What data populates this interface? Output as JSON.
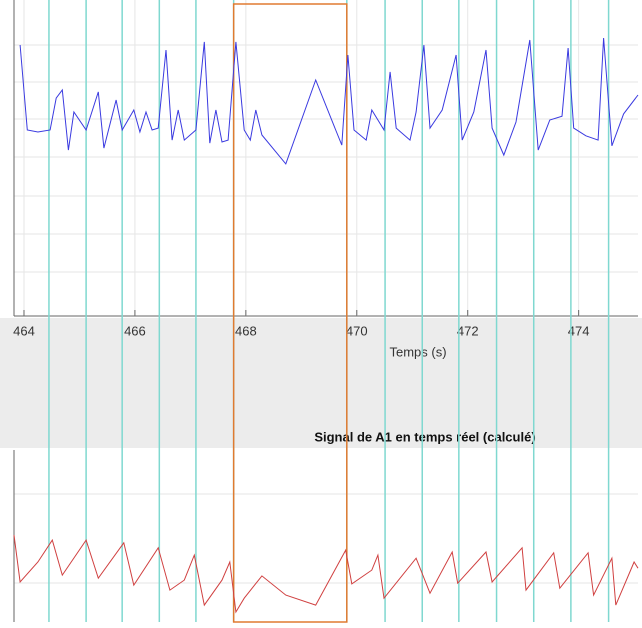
{
  "chart_data": [
    {
      "type": "line",
      "xlabel": "Temps (s)",
      "xlim": [
        463.82,
        475.07
      ],
      "ylim": [
        0,
        8
      ],
      "xticks": [
        464,
        466,
        468,
        470,
        472,
        474
      ],
      "grid": true,
      "markers": [
        464.45,
        465.12,
        465.77,
        466.44,
        467.1,
        467.78,
        469.82,
        470.51,
        471.18,
        471.84,
        472.52,
        473.19,
        473.86,
        474.54
      ],
      "marker_color": "#7fd8d0",
      "highlight": [
        467.78,
        469.82
      ],
      "highlight_color": "#e07a30",
      "x": [
        463.93,
        464.06,
        464.25,
        464.47,
        464.58,
        464.69,
        464.8,
        464.9,
        465.12,
        465.34,
        465.44,
        465.66,
        465.77,
        465.98,
        466.09,
        466.2,
        466.31,
        466.42,
        466.56,
        466.67,
        466.78,
        466.89,
        467.1,
        467.25,
        467.35,
        467.46,
        467.57,
        467.68,
        467.82,
        467.97,
        468.08,
        468.18,
        468.29,
        468.72,
        469.26,
        469.62,
        469.73,
        469.84,
        469.95,
        470.17,
        470.27,
        470.49,
        470.6,
        470.71,
        470.96,
        471.07,
        471.21,
        471.32,
        471.54,
        471.79,
        471.9,
        472.11,
        472.33,
        472.44,
        472.65,
        472.87,
        473.12,
        473.27,
        473.48,
        473.7,
        473.81,
        473.91,
        474.13,
        474.35,
        474.45,
        474.6,
        474.81,
        475.07
      ],
      "series": [
        {
          "color": "#3a3ae0",
          "values": [
            7.04,
            4.83,
            4.78,
            4.83,
            5.66,
            5.87,
            4.31,
            5.3,
            4.83,
            5.82,
            4.36,
            5.61,
            4.83,
            5.35,
            4.78,
            5.3,
            4.83,
            4.88,
            6.91,
            4.57,
            5.35,
            4.57,
            4.83,
            7.12,
            4.49,
            5.35,
            4.52,
            4.57,
            7.12,
            4.83,
            4.57,
            5.35,
            4.7,
            3.95,
            6.13,
            4.83,
            4.44,
            6.78,
            4.83,
            4.57,
            5.35,
            4.83,
            6.34,
            4.88,
            4.57,
            5.3,
            7.04,
            4.88,
            5.35,
            6.78,
            4.57,
            5.3,
            6.91,
            4.88,
            4.18,
            5.04,
            7.17,
            4.31,
            5.09,
            5.19,
            6.96,
            4.88,
            4.68,
            4.57,
            7.22,
            4.42,
            5.25,
            5.74
          ]
        }
      ]
    },
    {
      "type": "line",
      "title": "Signal de A1 en temps réel (calculé)",
      "xlim": [
        463.82,
        475.07
      ],
      "ylim": [
        0,
        4.5
      ],
      "x": [
        463.82,
        463.93,
        464.25,
        464.51,
        464.69,
        465.12,
        465.34,
        465.8,
        465.98,
        466.42,
        466.63,
        466.89,
        467.07,
        467.25,
        467.57,
        467.71,
        467.82,
        467.97,
        468.29,
        468.72,
        469.26,
        469.8,
        469.91,
        470.27,
        470.38,
        470.49,
        471.07,
        471.32,
        471.72,
        471.82,
        472.33,
        472.44,
        472.98,
        473.05,
        473.55,
        473.66,
        474.17,
        474.27,
        474.6,
        474.67,
        475.0,
        475.07
      ],
      "series": [
        {
          "color": "#d04040",
          "values": [
            2.26,
            1.04,
            1.56,
            2.13,
            1.22,
            2.13,
            1.14,
            2.06,
            0.96,
            1.93,
            0.83,
            1.09,
            1.74,
            0.44,
            1.09,
            1.56,
            0.26,
            0.62,
            1.2,
            0.7,
            0.44,
            1.87,
            0.99,
            1.35,
            1.74,
            0.62,
            1.66,
            0.75,
            1.82,
            1.01,
            1.82,
            1.04,
            1.93,
            0.83,
            1.8,
            0.88,
            1.8,
            0.7,
            1.66,
            0.44,
            1.56,
            1.4
          ]
        }
      ]
    }
  ]
}
